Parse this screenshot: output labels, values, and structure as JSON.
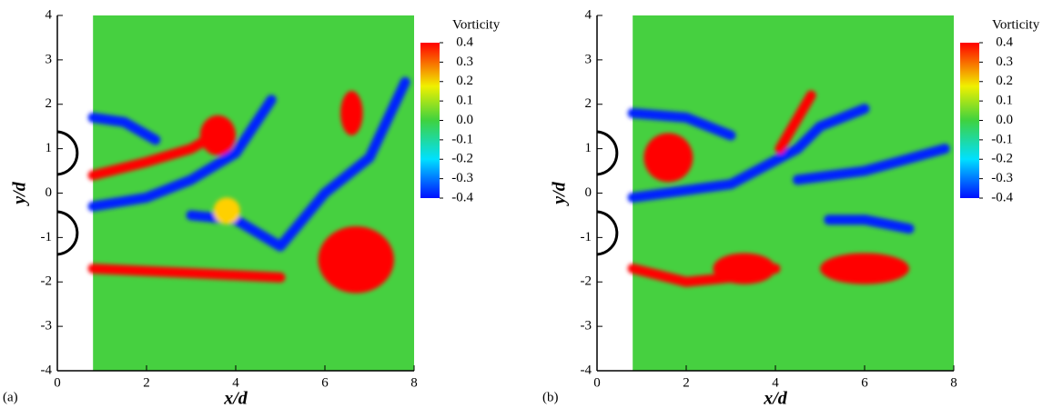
{
  "chart_data": [
    {
      "type": "contour",
      "panel_label": "(a)",
      "xlabel": "x/d",
      "ylabel": "y/d",
      "xlim": [
        0,
        8
      ],
      "ylim": [
        -4,
        4
      ],
      "xticks": [
        0,
        2,
        4,
        6,
        8
      ],
      "yticks": [
        -4,
        -3,
        -2,
        -1,
        0,
        1,
        2,
        3,
        4
      ],
      "colorbar": {
        "title": "Vorticity",
        "lim": [
          -0.4,
          0.4
        ],
        "ticks": [
          -0.4,
          -0.3,
          -0.2,
          -0.1,
          {
            "value": 0,
            "label": "0.0"
          },
          0.1,
          0.2,
          0.3,
          0.4
        ]
      }
    },
    {
      "type": "contour",
      "panel_label": "(b)",
      "xlabel": "x/d",
      "ylabel": "y/d",
      "xlim": [
        0,
        8
      ],
      "ylim": [
        -4,
        4
      ],
      "xticks": [
        0,
        2,
        4,
        6,
        8
      ],
      "yticks": [
        -4,
        -3,
        -2,
        -1,
        0,
        1,
        2,
        3,
        4
      ],
      "colorbar": {
        "title": "Vorticity",
        "lim": [
          -0.4,
          0.4
        ],
        "ticks": [
          -0.4,
          -0.3,
          -0.2,
          -0.1,
          {
            "value": 0,
            "label": "0.0"
          },
          0.1,
          0.2,
          0.3,
          0.4
        ]
      }
    }
  ]
}
